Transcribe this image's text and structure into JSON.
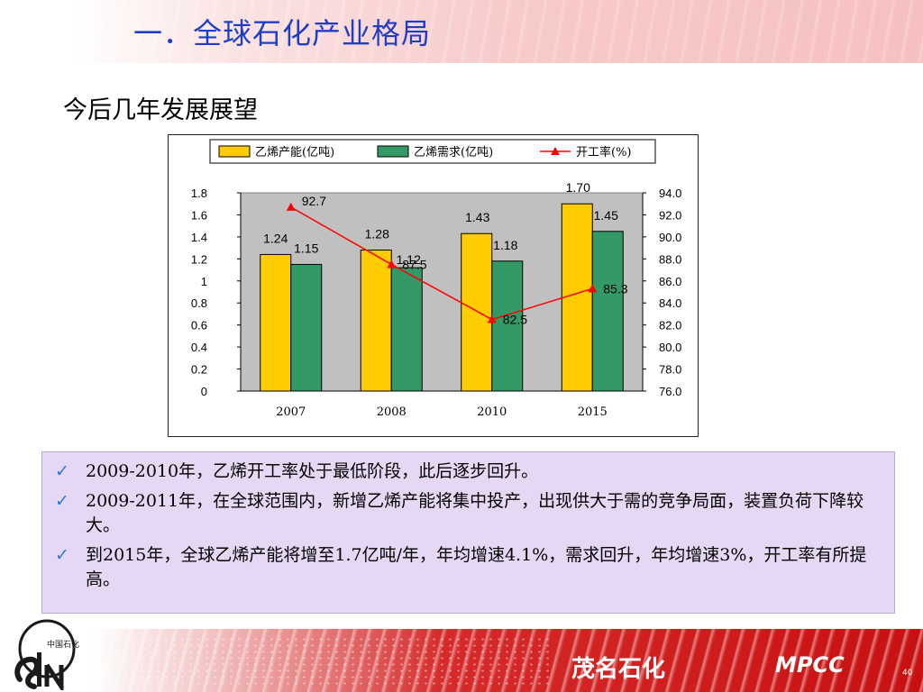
{
  "slide": {
    "title": "一．全球石化产业格局",
    "subtitle": "今后几年发展展望",
    "page_number": "40"
  },
  "chart_data": {
    "type": "bar",
    "categories": [
      "2007",
      "2008",
      "2010",
      "2015"
    ],
    "series": [
      {
        "name": "乙烯产能(亿吨)",
        "kind": "bar",
        "axis": "left",
        "color": "#ffcc00",
        "values": [
          1.24,
          1.28,
          1.43,
          1.7
        ],
        "labels": [
          "1.24",
          "1.28",
          "1.43",
          "1.70"
        ]
      },
      {
        "name": "乙烯需求(亿吨)",
        "kind": "bar",
        "axis": "left",
        "color": "#339966",
        "values": [
          1.15,
          1.12,
          1.18,
          1.45
        ],
        "labels": [
          "1.15",
          "1.12",
          "1.18",
          "1.45"
        ]
      },
      {
        "name": "开工率(%)",
        "kind": "line",
        "axis": "right",
        "color": "#ff0000",
        "values": [
          92.7,
          87.5,
          82.5,
          85.3
        ],
        "labels": [
          "92.7",
          "87.5",
          "82.5",
          "85.3"
        ]
      }
    ],
    "y_left": {
      "ylim": [
        0,
        1.8
      ],
      "ticks": [
        "0",
        "0.2",
        "0.4",
        "0.6",
        "0.8",
        "1",
        "1.2",
        "1.4",
        "1.6",
        "1.8"
      ]
    },
    "y_right": {
      "ylim": [
        76,
        94
      ],
      "ticks": [
        "76.0",
        "78.0",
        "80.0",
        "82.0",
        "84.0",
        "86.0",
        "88.0",
        "90.0",
        "92.0",
        "94.0"
      ]
    },
    "plot_background": "#c0c0c0",
    "legend_position": "top",
    "grid": false
  },
  "bullets": [
    {
      "text": "2009-2010年，乙烯开工率处于最低阶段，此后逐步回升。"
    },
    {
      "text": "2009-2011年，在全球范围内，新增乙烯产能将集中投产，出现供大于需的竞争局面，装置负荷下降较大。"
    },
    {
      "text": "到2015年，全球乙烯产能将增至1.7亿吨/年，年均增速4.1%，需求回升，年均增速3%，开工率有所提高。"
    }
  ],
  "footer": {
    "brand": "茂名石化",
    "code": "MPCC",
    "logo_text": "中国石化"
  },
  "colors": {
    "title": "#1f3ec8",
    "bullet_box": "#e6d8f5",
    "check": "#2a7ad3",
    "footer_red": "#c81010"
  },
  "icons": {
    "bullet": "check-icon"
  }
}
